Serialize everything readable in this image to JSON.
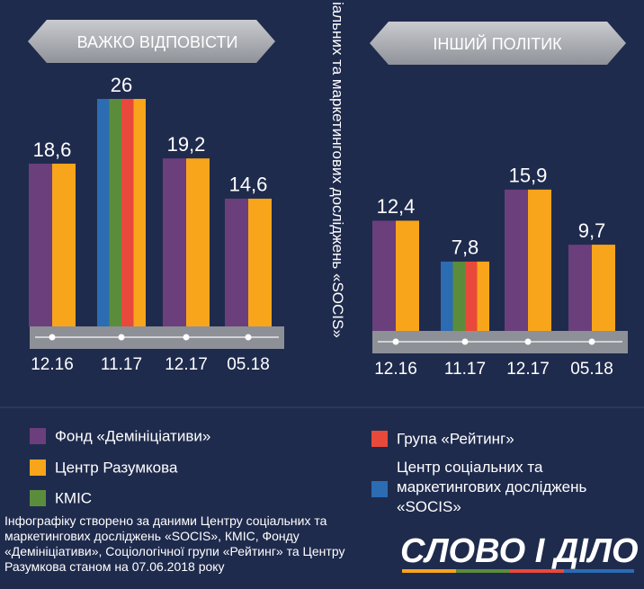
{
  "chart_data": [
    {
      "type": "bar",
      "title": "ВАЖКО ВІДПОВІСТИ",
      "categories": [
        "12.16",
        "11.17",
        "12.17",
        "05.18"
      ],
      "values": [
        18.6,
        26,
        19.2,
        14.6
      ],
      "value_labels": [
        "18,6",
        "26",
        "19,2",
        "14,6"
      ],
      "ylim": [
        0,
        26
      ],
      "series": [
        {
          "color": "#6b3f7c",
          "values": [
            18.6,
            null,
            19.2,
            14.6
          ]
        },
        {
          "color": "#2b6cb3",
          "values": [
            null,
            26,
            null,
            null
          ]
        },
        {
          "color": "#5b8c3b",
          "values": [
            null,
            26,
            null,
            null
          ]
        },
        {
          "color": "#e8493b",
          "values": [
            null,
            26,
            null,
            null
          ]
        },
        {
          "color": "#f8a51b",
          "values": [
            18.6,
            26,
            19.2,
            14.6
          ]
        }
      ]
    },
    {
      "type": "bar",
      "title": "ІНШИЙ ПОЛІТИК",
      "categories": [
        "12.16",
        "11.17",
        "12.17",
        "05.18"
      ],
      "values": [
        12.4,
        7.8,
        15.9,
        9.7
      ],
      "value_labels": [
        "12,4",
        "7,8",
        "15,9",
        "9,7"
      ],
      "ylim": [
        0,
        26
      ],
      "series": [
        {
          "color": "#6b3f7c",
          "values": [
            12.4,
            null,
            15.9,
            9.7
          ]
        },
        {
          "color": "#2b6cb3",
          "values": [
            null,
            7.8,
            null,
            null
          ]
        },
        {
          "color": "#5b8c3b",
          "values": [
            null,
            7.8,
            null,
            null
          ]
        },
        {
          "color": "#e8493b",
          "values": [
            null,
            7.8,
            null,
            null
          ]
        },
        {
          "color": "#f8a51b",
          "values": [
            12.4,
            7.8,
            15.9,
            9.7
          ]
        }
      ]
    }
  ],
  "vertical_caption": "іальних та маркетингових досліджень «SOCIS»",
  "legend": [
    {
      "name": "Фонд «Демініціативи»",
      "color": "#6b3f7c"
    },
    {
      "name": "Центр Разумкова",
      "color": "#f8a51b"
    },
    {
      "name": "КМІС",
      "color": "#5b8c3b"
    },
    {
      "name": "Група «Рейтинг»",
      "color": "#e8493b"
    },
    {
      "name": "Центр соціальних та маркетингових досліджень «SOCIS»",
      "color": "#2b6cb3"
    }
  ],
  "note": "Інфографіку створено за даними Центру соціальних та маркетингових досліджень «SOCIS», КМІС, Фонду «Демініціативи», Соціологічної групи «Рейтинг» та Центру Разумкова станом на 07.06.2018 року",
  "logo": "СЛОВО І ДІЛО"
}
